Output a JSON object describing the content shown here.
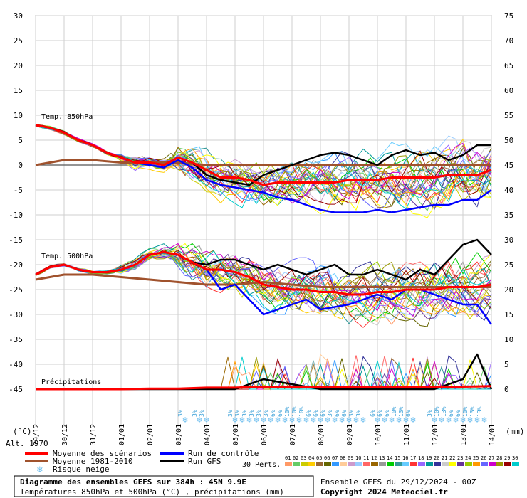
{
  "chart_data": {
    "type": "line",
    "title": "Diagramme des ensembles GEFS sur 384h : 45N 9.9E",
    "subtitle": "Températures 850hPa et 500hPa (°C) , précipitations (mm)",
    "run_label": "Ensemble GEFS du 29/12/2024 - 00Z",
    "copyright": "Copyright 2024 Meteociel.fr",
    "left_unit": "(°C)",
    "right_unit": "(mm)",
    "altitude_label": "Alt. 1970",
    "left_axis": {
      "ticks": [
        30,
        25,
        20,
        15,
        10,
        5,
        0,
        -5,
        -10,
        -15,
        -20,
        -25,
        -30,
        -35,
        -40,
        -45
      ],
      "range": [
        -45,
        30
      ]
    },
    "right_axis": {
      "ticks": [
        75,
        70,
        65,
        60,
        55,
        50,
        45,
        40,
        35,
        30,
        25,
        20,
        15,
        10,
        5,
        0
      ],
      "range": [
        0,
        75
      ]
    },
    "dates": [
      "29/12",
      "30/12",
      "31/12",
      "01/01",
      "02/01",
      "03/01",
      "04/01",
      "05/01",
      "06/01",
      "07/01",
      "08/01",
      "09/01",
      "10/01",
      "11/01",
      "12/01",
      "13/01",
      "14/01"
    ],
    "section_labels": {
      "t850": "Temp. 850hPa",
      "t500": "Temp. 500hPa",
      "precip": "Précipitations"
    },
    "legend": {
      "mean": "Moyenne des scénarios",
      "clim": "Moyenne 1981-2010",
      "snow": "Risque neige",
      "control": "Run de contrôle",
      "gfs": "Run GFS",
      "perts_label": "30 Perts.",
      "pert_ids": [
        "01",
        "02",
        "03",
        "04",
        "05",
        "06",
        "07",
        "08",
        "09",
        "10",
        "11",
        "12",
        "13",
        "14",
        "15",
        "16",
        "17",
        "18",
        "19",
        "20",
        "21",
        "22",
        "23",
        "24",
        "25",
        "26",
        "27",
        "28",
        "29",
        "30"
      ],
      "pert_colors": [
        "#ff9966",
        "#66cc66",
        "#cccc00",
        "#ffcc00",
        "#996633",
        "#666600",
        "#3399ff",
        "#ffcc99",
        "#cc99cc",
        "#99ccff",
        "#ff6666",
        "#996600",
        "#999999",
        "#00cc00",
        "#339999",
        "#66ccff",
        "#ff3333",
        "#9966ff",
        "#009999",
        "#333399",
        "#cccccc",
        "#ffff00",
        "#663399",
        "#99cc00",
        "#ff9900",
        "#6666ff",
        "#cc00cc",
        "#999900",
        "#990000",
        "#00cccc"
      ]
    },
    "colors": {
      "mean": "#ff0000",
      "clim": "#a0522d",
      "control": "#0000ff",
      "gfs": "#000000",
      "snow": "#66bbee"
    },
    "snow_risk": [
      {
        "day": 5.25,
        "pct": "3%"
      },
      {
        "day": 5.75,
        "pct": "3%"
      },
      {
        "day": 6.0,
        "pct": "3%"
      },
      {
        "day": 7.0,
        "pct": "3%"
      },
      {
        "day": 7.25,
        "pct": "3%"
      },
      {
        "day": 7.5,
        "pct": "3%"
      },
      {
        "day": 7.75,
        "pct": "3%"
      },
      {
        "day": 8.0,
        "pct": "3%"
      },
      {
        "day": 8.25,
        "pct": "3%"
      },
      {
        "day": 8.5,
        "pct": "6%"
      },
      {
        "day": 8.75,
        "pct": "6%"
      },
      {
        "day": 9.0,
        "pct": "10%"
      },
      {
        "day": 9.25,
        "pct": "10%"
      },
      {
        "day": 9.5,
        "pct": "10%"
      },
      {
        "day": 9.75,
        "pct": "6%"
      },
      {
        "day": 10.0,
        "pct": "6%"
      },
      {
        "day": 10.25,
        "pct": "6%"
      },
      {
        "day": 10.5,
        "pct": "3%"
      },
      {
        "day": 10.75,
        "pct": "6%"
      },
      {
        "day": 11.0,
        "pct": "6%"
      },
      {
        "day": 11.25,
        "pct": "3%"
      },
      {
        "day": 11.5,
        "pct": "3%"
      },
      {
        "day": 12.0,
        "pct": "6%"
      },
      {
        "day": 12.25,
        "pct": "6%"
      },
      {
        "day": 12.5,
        "pct": "6%"
      },
      {
        "day": 12.75,
        "pct": "10%"
      },
      {
        "day": 13.0,
        "pct": "13%"
      },
      {
        "day": 13.25,
        "pct": "6%"
      },
      {
        "day": 14.0,
        "pct": "3%"
      },
      {
        "day": 14.25,
        "pct": "10%"
      },
      {
        "day": 14.5,
        "pct": "13%"
      },
      {
        "day": 14.75,
        "pct": "6%"
      },
      {
        "day": 15.0,
        "pct": "6%"
      },
      {
        "day": 15.25,
        "pct": "10%"
      },
      {
        "day": 15.5,
        "pct": "13%"
      },
      {
        "day": 15.75,
        "pct": "13%"
      }
    ],
    "series": [
      {
        "name": "Moyenne des scénarios",
        "panel": "t850",
        "x": [
          0,
          0.5,
          1,
          1.5,
          2,
          2.5,
          3,
          3.5,
          4,
          4.5,
          5,
          5.5,
          6,
          6.5,
          7,
          7.5,
          8,
          8.5,
          9,
          9.5,
          10,
          10.5,
          11,
          11.5,
          12,
          12.5,
          13,
          13.5,
          14,
          14.5,
          15,
          15.5,
          16
        ],
        "y": [
          8,
          7.5,
          6.5,
          5,
          4,
          2.5,
          1.5,
          0.5,
          0.5,
          0,
          1.5,
          0.5,
          -1,
          -2.5,
          -2.5,
          -3,
          -4,
          -3.5,
          -3.5,
          -3.5,
          -3.5,
          -3.5,
          -3,
          -3,
          -3,
          -2.5,
          -2.5,
          -2.5,
          -2.5,
          -2,
          -2,
          -2,
          -1
        ]
      },
      {
        "name": "Moyenne 1981-2010",
        "panel": "t850",
        "x": [
          0,
          1,
          2,
          3,
          4,
          5,
          6,
          7,
          8,
          9,
          10,
          11,
          12,
          13,
          14,
          15,
          16
        ],
        "y": [
          0,
          1,
          1,
          0.5,
          0.5,
          0.5,
          0,
          0,
          0,
          0,
          0,
          0,
          0,
          0,
          0,
          0,
          0
        ]
      },
      {
        "name": "Run de contrôle",
        "panel": "t850",
        "x": [
          0,
          0.5,
          1,
          1.5,
          2,
          2.5,
          3,
          3.5,
          4,
          4.5,
          5,
          5.5,
          6,
          6.5,
          7,
          7.5,
          8,
          8.5,
          9,
          9.5,
          10,
          10.5,
          11,
          11.5,
          12,
          12.5,
          13,
          13.5,
          14,
          14.5,
          15,
          15.5,
          16
        ],
        "y": [
          8,
          7.5,
          6.5,
          5,
          4,
          2.5,
          1.5,
          0.5,
          0,
          -0.5,
          1,
          -0.5,
          -3,
          -4,
          -4.5,
          -5,
          -5.5,
          -6.5,
          -7,
          -8,
          -9,
          -9.5,
          -9.5,
          -9.5,
          -9,
          -9.5,
          -9,
          -8.5,
          -8,
          -8,
          -7,
          -7,
          -5
        ]
      },
      {
        "name": "Run GFS",
        "panel": "t850",
        "x": [
          0,
          0.5,
          1,
          1.5,
          2,
          2.5,
          3,
          3.5,
          4,
          4.5,
          5,
          5.5,
          6,
          6.5,
          7,
          7.5,
          8,
          8.5,
          9,
          9.5,
          10,
          10.5,
          11,
          11.5,
          12,
          12.5,
          13,
          13.5,
          14,
          14.5,
          15,
          15.5,
          16
        ],
        "y": [
          8,
          7.5,
          6.5,
          5,
          4,
          2.5,
          1.5,
          0.5,
          0.5,
          0,
          1.5,
          0.5,
          -2,
          -3,
          -3.5,
          -4,
          -2,
          -1,
          0,
          1,
          2,
          2.5,
          2,
          1,
          0,
          2,
          3,
          2,
          2.5,
          1,
          2,
          4,
          4
        ]
      },
      {
        "name": "Moyenne des scénarios",
        "panel": "t500",
        "x": [
          0,
          0.5,
          1,
          1.5,
          2,
          2.5,
          3,
          3.5,
          4,
          4.5,
          5,
          5.5,
          6,
          6.5,
          7,
          7.5,
          8,
          8.5,
          9,
          9.5,
          10,
          10.5,
          11,
          11.5,
          12,
          12.5,
          13,
          13.5,
          14,
          14.5,
          15,
          15.5,
          16
        ],
        "y": [
          -22,
          -20.5,
          -20,
          -21,
          -21.5,
          -21.5,
          -21,
          -20,
          -18,
          -17.5,
          -18,
          -19.5,
          -21,
          -21,
          -21.5,
          -22.5,
          -24,
          -24.5,
          -25,
          -25,
          -25.5,
          -25.5,
          -26,
          -26,
          -25.5,
          -25.5,
          -25,
          -25,
          -25,
          -24.5,
          -24.5,
          -24.5,
          -24
        ]
      },
      {
        "name": "Moyenne 1981-2010",
        "panel": "t500",
        "x": [
          0,
          1,
          2,
          3,
          4,
          5,
          6,
          7,
          8,
          9,
          10,
          11,
          12,
          13,
          14,
          15,
          16
        ],
        "y": [
          -23,
          -22,
          -22,
          -22.5,
          -23,
          -23.5,
          -24,
          -24,
          -23.5,
          -24,
          -24.5,
          -24.5,
          -24.5,
          -24.5,
          -24.5,
          -24.5,
          -24.5
        ]
      },
      {
        "name": "Run de contrôle",
        "panel": "t500",
        "x": [
          0,
          0.5,
          1,
          1.5,
          2,
          2.5,
          3,
          3.5,
          4,
          4.5,
          5,
          5.5,
          6,
          6.5,
          7,
          7.5,
          8,
          8.5,
          9,
          9.5,
          10,
          10.5,
          11,
          11.5,
          12,
          12.5,
          13,
          13.5,
          14,
          14.5,
          15,
          15.5,
          16
        ],
        "y": [
          -22,
          -20.5,
          -20,
          -21,
          -21.5,
          -21.5,
          -21,
          -20,
          -18,
          -17.5,
          -18,
          -19.5,
          -21,
          -25,
          -24,
          -27,
          -30,
          -29,
          -28,
          -27,
          -29,
          -28.5,
          -28,
          -27,
          -26,
          -27,
          -25,
          -25,
          -26,
          -27,
          -28,
          -28,
          -32
        ]
      },
      {
        "name": "Run GFS",
        "panel": "t500",
        "x": [
          0,
          0.5,
          1,
          1.5,
          2,
          2.5,
          3,
          3.5,
          4,
          4.5,
          5,
          5.5,
          6,
          6.5,
          7,
          7.5,
          8,
          8.5,
          9,
          9.5,
          10,
          10.5,
          11,
          11.5,
          12,
          12.5,
          13,
          13.5,
          14,
          14.5,
          15,
          15.5,
          16
        ],
        "y": [
          -22,
          -20.5,
          -20,
          -21,
          -21.5,
          -21.5,
          -21,
          -20,
          -18,
          -17.5,
          -18,
          -19.5,
          -20,
          -19,
          -19,
          -20,
          -21,
          -20,
          -21,
          -22,
          -21,
          -20,
          -22,
          -22,
          -21,
          -22,
          -23,
          -21,
          -22,
          -19,
          -16,
          -15,
          -18
        ]
      },
      {
        "name": "Moyenne des scénarios",
        "panel": "precip",
        "x": [
          0,
          1,
          2,
          3,
          4,
          5,
          6,
          7,
          8,
          9,
          10,
          11,
          12,
          13,
          14,
          15,
          16
        ],
        "y": [
          0,
          0,
          0,
          0,
          0.1,
          0.1,
          0.3,
          0.3,
          0.5,
          0.5,
          0.5,
          0.5,
          0.4,
          0.5,
          0.5,
          0.5,
          0.6
        ]
      },
      {
        "name": "Run GFS",
        "panel": "precip",
        "x": [
          0,
          1,
          2,
          3,
          4,
          5,
          6,
          7,
          8,
          9,
          10,
          11,
          12,
          13,
          14,
          15,
          15.5,
          16
        ],
        "y": [
          0,
          0,
          0,
          0,
          0,
          0,
          0,
          0,
          2,
          1,
          0,
          0,
          0,
          0,
          0,
          2,
          7,
          0
        ]
      }
    ]
  }
}
